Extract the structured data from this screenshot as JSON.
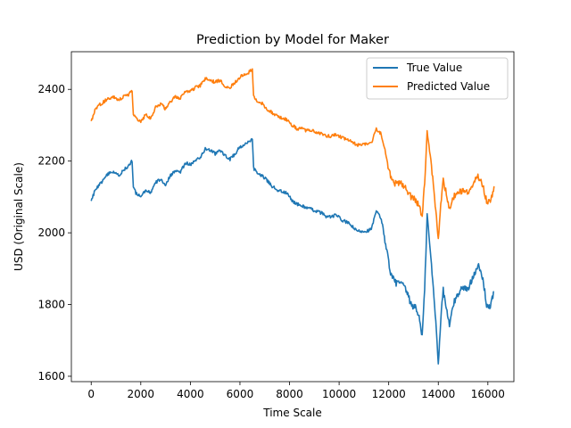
{
  "chart_data": {
    "type": "line",
    "title": "Prediction by Model for Maker",
    "xlabel": "Time Scale",
    "ylabel": "USD (Original Scale)",
    "xlim": [
      -800,
      17050
    ],
    "ylim": [
      1585,
      2505
    ],
    "xticks": [
      0,
      2000,
      4000,
      6000,
      8000,
      10000,
      12000,
      14000,
      16000
    ],
    "yticks": [
      1600,
      1800,
      2000,
      2200,
      2400
    ],
    "legend_position": "top-right",
    "grid": false,
    "series": [
      {
        "name": "True Value",
        "color": "#1f77b4",
        "points": [
          [
            0,
            2085
          ],
          [
            150,
            2120
          ],
          [
            300,
            2130
          ],
          [
            500,
            2150
          ],
          [
            700,
            2165
          ],
          [
            900,
            2170
          ],
          [
            1100,
            2160
          ],
          [
            1300,
            2175
          ],
          [
            1500,
            2185
          ],
          [
            1650,
            2200
          ],
          [
            1700,
            2130
          ],
          [
            1800,
            2110
          ],
          [
            2000,
            2100
          ],
          [
            2200,
            2120
          ],
          [
            2400,
            2110
          ],
          [
            2600,
            2140
          ],
          [
            2800,
            2150
          ],
          [
            3000,
            2135
          ],
          [
            3200,
            2160
          ],
          [
            3400,
            2175
          ],
          [
            3600,
            2170
          ],
          [
            3800,
            2195
          ],
          [
            4000,
            2190
          ],
          [
            4200,
            2200
          ],
          [
            4400,
            2210
          ],
          [
            4600,
            2235
          ],
          [
            4800,
            2230
          ],
          [
            5000,
            2220
          ],
          [
            5200,
            2230
          ],
          [
            5400,
            2215
          ],
          [
            5600,
            2205
          ],
          [
            5800,
            2220
          ],
          [
            6000,
            2240
          ],
          [
            6200,
            2245
          ],
          [
            6400,
            2255
          ],
          [
            6500,
            2260
          ],
          [
            6550,
            2180
          ],
          [
            6700,
            2165
          ],
          [
            6900,
            2160
          ],
          [
            7100,
            2145
          ],
          [
            7300,
            2130
          ],
          [
            7500,
            2120
          ],
          [
            7700,
            2115
          ],
          [
            7900,
            2110
          ],
          [
            8100,
            2090
          ],
          [
            8300,
            2080
          ],
          [
            8500,
            2075
          ],
          [
            8700,
            2070
          ],
          [
            8900,
            2065
          ],
          [
            9100,
            2060
          ],
          [
            9300,
            2055
          ],
          [
            9500,
            2045
          ],
          [
            9700,
            2045
          ],
          [
            9900,
            2050
          ],
          [
            10100,
            2035
          ],
          [
            10300,
            2030
          ],
          [
            10500,
            2020
          ],
          [
            10700,
            2005
          ],
          [
            10900,
            2005
          ],
          [
            11100,
            2005
          ],
          [
            11300,
            2010
          ],
          [
            11500,
            2060
          ],
          [
            11700,
            2040
          ],
          [
            11900,
            1960
          ],
          [
            12100,
            1880
          ],
          [
            12300,
            1860
          ],
          [
            12500,
            1860
          ],
          [
            12700,
            1840
          ],
          [
            12900,
            1800
          ],
          [
            13100,
            1790
          ],
          [
            13250,
            1760
          ],
          [
            13350,
            1710
          ],
          [
            13450,
            1840
          ],
          [
            13550,
            2050
          ],
          [
            13700,
            1930
          ],
          [
            13850,
            1800
          ],
          [
            13950,
            1700
          ],
          [
            14000,
            1635
          ],
          [
            14100,
            1760
          ],
          [
            14200,
            1840
          ],
          [
            14350,
            1780
          ],
          [
            14450,
            1740
          ],
          [
            14600,
            1800
          ],
          [
            14800,
            1830
          ],
          [
            15000,
            1850
          ],
          [
            15200,
            1840
          ],
          [
            15400,
            1880
          ],
          [
            15600,
            1910
          ],
          [
            15800,
            1870
          ],
          [
            15950,
            1800
          ],
          [
            16100,
            1790
          ],
          [
            16250,
            1840
          ]
        ]
      },
      {
        "name": "Predicted Value",
        "color": "#ff7f0e",
        "points": [
          [
            0,
            2310
          ],
          [
            150,
            2340
          ],
          [
            300,
            2355
          ],
          [
            500,
            2365
          ],
          [
            700,
            2375
          ],
          [
            900,
            2380
          ],
          [
            1100,
            2370
          ],
          [
            1300,
            2380
          ],
          [
            1500,
            2385
          ],
          [
            1650,
            2395
          ],
          [
            1700,
            2330
          ],
          [
            1800,
            2320
          ],
          [
            2000,
            2310
          ],
          [
            2200,
            2330
          ],
          [
            2400,
            2320
          ],
          [
            2600,
            2350
          ],
          [
            2800,
            2360
          ],
          [
            3000,
            2345
          ],
          [
            3200,
            2365
          ],
          [
            3400,
            2380
          ],
          [
            3600,
            2375
          ],
          [
            3800,
            2395
          ],
          [
            4000,
            2395
          ],
          [
            4200,
            2405
          ],
          [
            4400,
            2410
          ],
          [
            4600,
            2430
          ],
          [
            4800,
            2425
          ],
          [
            5000,
            2420
          ],
          [
            5200,
            2425
          ],
          [
            5400,
            2410
          ],
          [
            5600,
            2405
          ],
          [
            5800,
            2420
          ],
          [
            6000,
            2435
          ],
          [
            6200,
            2440
          ],
          [
            6400,
            2450
          ],
          [
            6500,
            2455
          ],
          [
            6550,
            2380
          ],
          [
            6700,
            2365
          ],
          [
            6900,
            2360
          ],
          [
            7100,
            2345
          ],
          [
            7300,
            2335
          ],
          [
            7500,
            2325
          ],
          [
            7700,
            2320
          ],
          [
            7900,
            2315
          ],
          [
            8100,
            2300
          ],
          [
            8300,
            2290
          ],
          [
            8500,
            2290
          ],
          [
            8700,
            2285
          ],
          [
            8900,
            2285
          ],
          [
            9100,
            2280
          ],
          [
            9300,
            2275
          ],
          [
            9500,
            2270
          ],
          [
            9700,
            2270
          ],
          [
            9900,
            2275
          ],
          [
            10100,
            2265
          ],
          [
            10300,
            2260
          ],
          [
            10500,
            2255
          ],
          [
            10700,
            2245
          ],
          [
            10900,
            2245
          ],
          [
            11100,
            2250
          ],
          [
            11300,
            2250
          ],
          [
            11500,
            2290
          ],
          [
            11700,
            2275
          ],
          [
            11900,
            2210
          ],
          [
            12100,
            2150
          ],
          [
            12300,
            2135
          ],
          [
            12500,
            2140
          ],
          [
            12700,
            2125
          ],
          [
            12900,
            2100
          ],
          [
            13100,
            2090
          ],
          [
            13250,
            2070
          ],
          [
            13350,
            2040
          ],
          [
            13450,
            2140
          ],
          [
            13550,
            2280
          ],
          [
            13700,
            2200
          ],
          [
            13850,
            2100
          ],
          [
            13950,
            2020
          ],
          [
            14000,
            1980
          ],
          [
            14100,
            2080
          ],
          [
            14200,
            2150
          ],
          [
            14350,
            2100
          ],
          [
            14450,
            2070
          ],
          [
            14600,
            2100
          ],
          [
            14800,
            2110
          ],
          [
            15000,
            2120
          ],
          [
            15200,
            2110
          ],
          [
            15400,
            2140
          ],
          [
            15600,
            2160
          ],
          [
            15800,
            2130
          ],
          [
            15950,
            2090
          ],
          [
            16100,
            2085
          ],
          [
            16250,
            2130
          ]
        ]
      }
    ]
  }
}
